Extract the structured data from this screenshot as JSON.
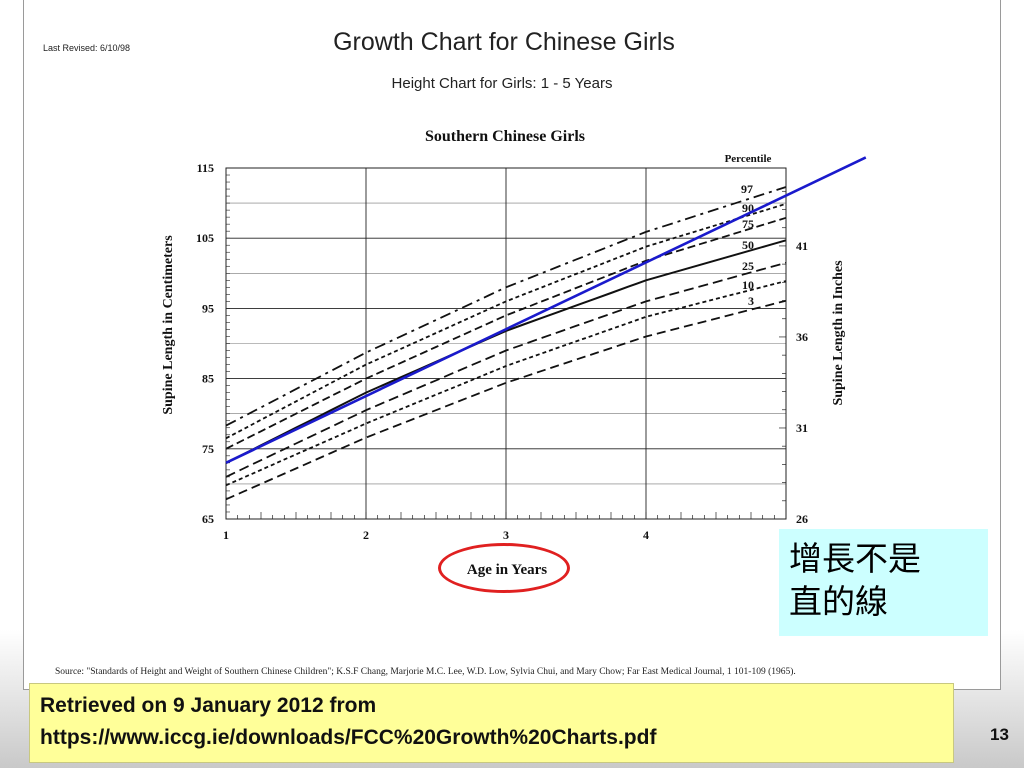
{
  "header": {
    "last_revised": "Last Revised: 6/10/98",
    "title": "Growth Chart for Chinese Girls",
    "subtitle": "Height Chart for Girls: 1 - 5 Years"
  },
  "chart_data": {
    "type": "line",
    "title": "Southern Chinese Girls",
    "xlabel": "Age in Years",
    "ylabel": "Supine Length in Centimeters",
    "y2label": "Supine Length in Inches",
    "legend_title": "Percentile",
    "xlim": [
      1,
      5
    ],
    "ylim": [
      65,
      115
    ],
    "y2lim": [
      26,
      45.28
    ],
    "x_ticks": [
      1,
      2,
      3,
      4
    ],
    "y_ticks": [
      65,
      75,
      85,
      95,
      105,
      115
    ],
    "y2_ticks": [
      26,
      31,
      36,
      41
    ],
    "grid": true,
    "x": [
      1,
      2,
      3,
      4,
      5
    ],
    "series": [
      {
        "name": "97",
        "values": [
          78.3,
          88.7,
          98.0,
          105.9,
          112.3
        ]
      },
      {
        "name": "90",
        "values": [
          76.5,
          87.0,
          96.0,
          103.8,
          109.9
        ]
      },
      {
        "name": "75",
        "values": [
          75.0,
          85.0,
          94.0,
          101.8,
          107.9
        ]
      },
      {
        "name": "50",
        "values": [
          73.0,
          83.0,
          91.8,
          99.0,
          104.7
        ]
      },
      {
        "name": "25",
        "values": [
          71.0,
          80.5,
          89.0,
          96.0,
          101.5
        ]
      },
      {
        "name": "10",
        "values": [
          69.8,
          78.6,
          86.8,
          93.8,
          98.9
        ]
      },
      {
        "name": "3",
        "values": [
          67.8,
          76.6,
          84.4,
          91.0,
          96.1
        ]
      }
    ],
    "trend_line": {
      "x": [
        1,
        5.57
      ],
      "y": [
        73.0,
        116.5
      ]
    }
  },
  "note": {
    "line1": "增長不是",
    "line2": "直的線"
  },
  "source": "Source: \"Standards of Height and Weight of Southern Chinese Children\"; K.S.F Chang, Marjorie M.C. Lee, W.D. Low, Sylvia Chui, and Mary Chow; Far East Medical Journal, 1 101-109 (1965).",
  "retrieved": {
    "line1": "Retrieved on 9 January 2012 from",
    "line2": "https://www.iccg.ie/downloads/FCC%20Growth%20Charts.pdf"
  },
  "slide_number": "13",
  "colors": {
    "trend_line": "#1a1acc",
    "highlight_ellipse": "#e02020",
    "note_bg": "#ccffff",
    "retrieved_bg": "#ffff99"
  }
}
